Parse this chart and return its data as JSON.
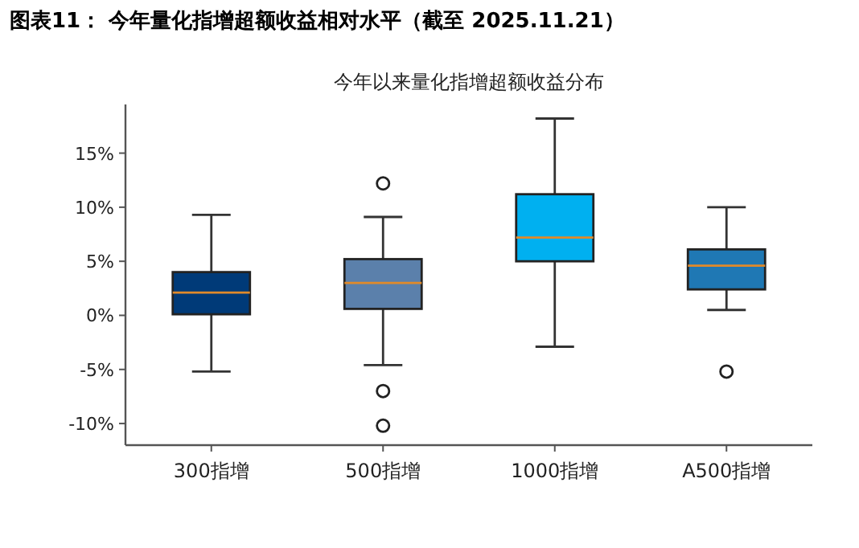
{
  "chart_data": {
    "type": "box",
    "title": "图表11： 今年量化指增超额收益相对水平（截至 2025.11.21）",
    "subtitle": "今年以来量化指增超额收益分布",
    "categories": [
      "300指增",
      "500指增",
      "1000指增",
      "A500指增"
    ],
    "colors": [
      "#003a78",
      "#5b80ab",
      "#00b0f0",
      "#1f78b4"
    ],
    "boxes": [
      {
        "low": -5.2,
        "q1": 0.1,
        "median": 2.1,
        "q3": 4.0,
        "high": 9.3
      },
      {
        "low": -4.6,
        "q1": 0.6,
        "median": 3.0,
        "q3": 5.2,
        "high": 9.1,
        "outliers": [
          12.2,
          -7.0,
          -10.2
        ]
      },
      {
        "low": -2.9,
        "q1": 5.0,
        "median": 7.2,
        "q3": 11.2,
        "high": 18.2
      },
      {
        "low": 0.5,
        "q1": 2.4,
        "median": 4.6,
        "q3": 6.1,
        "high": 10.0,
        "outliers": [
          -5.2
        ]
      }
    ],
    "ylim": [
      -12,
      19.5
    ],
    "yticks": [
      {
        "value": -10,
        "label": "-10%"
      },
      {
        "value": -5,
        "label": "-5%"
      },
      {
        "value": 0,
        "label": "0%"
      },
      {
        "value": 5,
        "label": "5%"
      },
      {
        "value": 10,
        "label": "10%"
      },
      {
        "value": 15,
        "label": "15%"
      }
    ],
    "grid": false
  }
}
